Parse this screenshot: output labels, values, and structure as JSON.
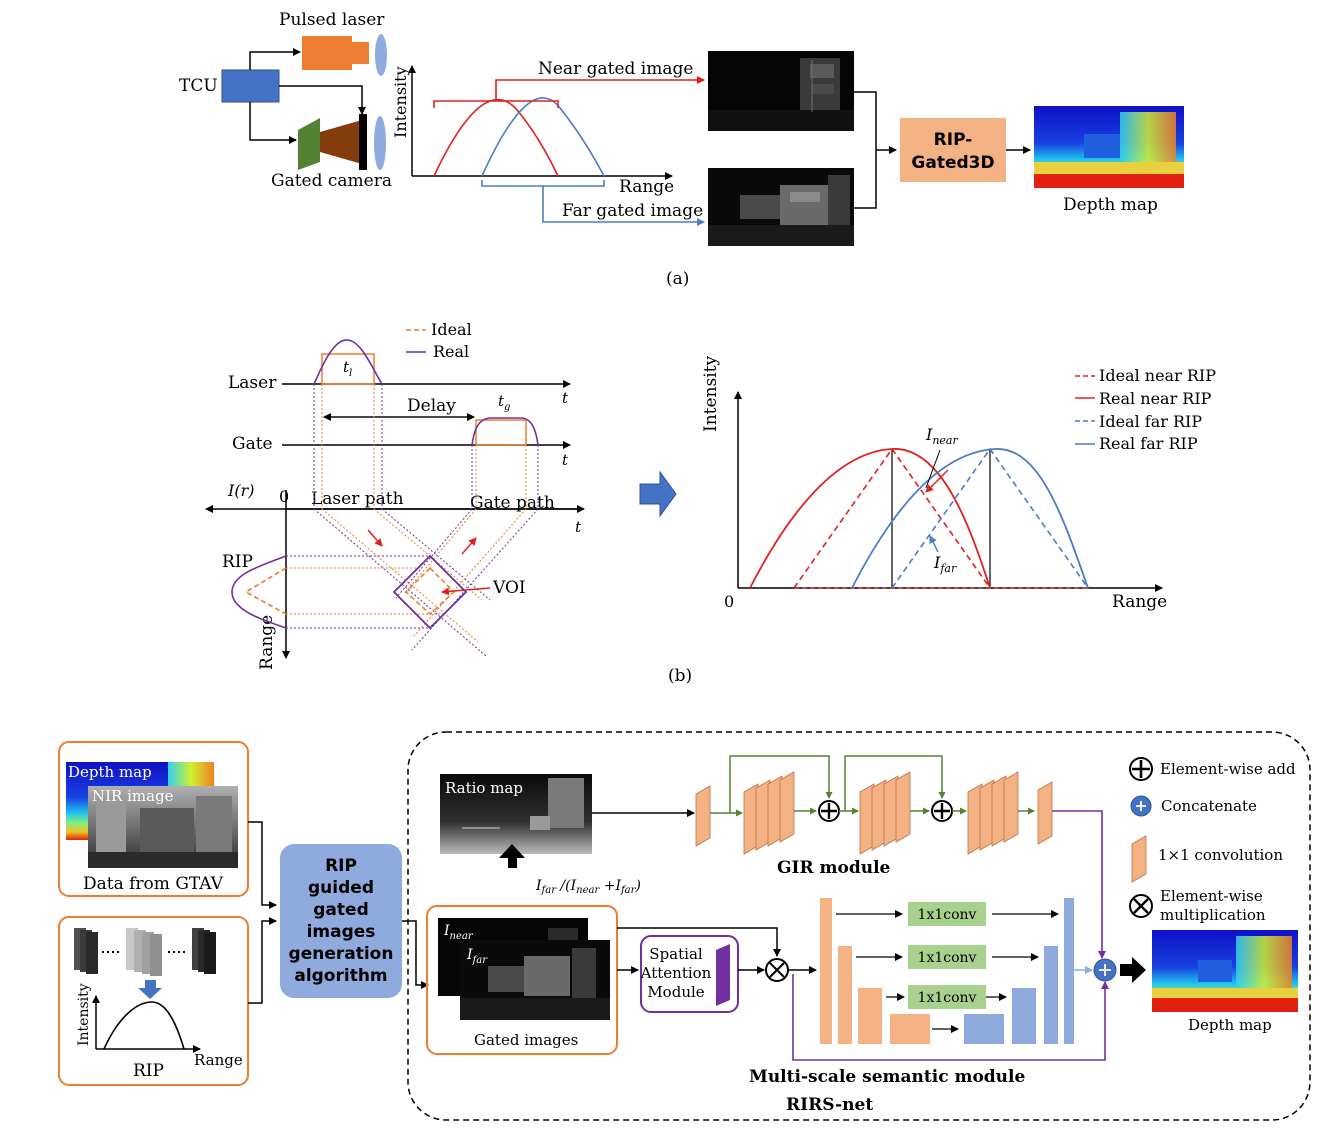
{
  "panel_a": {
    "labels": {
      "pulsed_laser": "Pulsed laser",
      "tcu": "TCU",
      "gated_camera": "Gated camera",
      "intensity": "Intensity",
      "range": "Range",
      "near_gated_image": "Near gated image",
      "far_gated_image": "Far gated image",
      "rip_gated3d_line1": "RIP-",
      "rip_gated3d_line2": "Gated3D",
      "depth_map": "Depth map"
    },
    "caption": "(a)"
  },
  "panel_b": {
    "legend_timing": {
      "ideal": "Ideal",
      "real": "Real"
    },
    "labels": {
      "laser": "Laser",
      "gate": "Gate",
      "t": "t",
      "t_l": "t",
      "t_l_sub": "l",
      "t_g": "t",
      "t_g_sub": "g",
      "delay": "Delay",
      "i_r": "I(r)",
      "zero": "0",
      "laser_path": "Laser path",
      "gate_path": "Gate path",
      "rip": "RIP",
      "voi": "VOI",
      "range": "Range",
      "intensity": "Intensity",
      "i_near": "I",
      "i_near_sub": "near",
      "i_far": "I",
      "i_far_sub": "far"
    },
    "legend_rip": {
      "ideal_near": "Ideal near RIP",
      "real_near": "Real near RIP",
      "ideal_far": "Ideal far RIP",
      "real_far": "Real far RIP"
    },
    "caption": "(b)"
  },
  "panel_c": {
    "labels": {
      "depth_map_small": "Depth map",
      "nir_image": "NIR image",
      "data_from_gtav": "Data from GTAV",
      "intensity": "Intensity",
      "range": "Range",
      "rip": "RIP",
      "rip_algo_1": "RIP",
      "rip_algo_2": "guided",
      "rip_algo_3": "gated",
      "rip_algo_4": "images",
      "rip_algo_5": "generation",
      "rip_algo_6": "algorithm",
      "ratio_map": "Ratio map",
      "ratio_formula": "I",
      "ratio_far_sub": "far",
      "ratio_mid": " /(I",
      "ratio_near_sub": "near",
      "ratio_plus": " +I",
      "ratio_far_sub2": "far",
      "ratio_close": ")",
      "i_near": "I",
      "i_near_sub": "near",
      "i_far": "I",
      "i_far_sub": "far",
      "gated_images": "Gated images",
      "spatial_1": "Spatial",
      "spatial_2": "Attention",
      "spatial_3": "Module",
      "gir_module": "GIR module",
      "conv_1x1_a": "1x1conv",
      "conv_1x1_b": "1x1conv",
      "conv_1x1_c": "1x1conv",
      "multiscale": "Multi-scale semantic module",
      "rirs_net": "RIRS-net",
      "depth_map_out": "Depth map"
    },
    "legend": {
      "element_add": "Element-wise add",
      "concatenate": "Concatenate",
      "conv": "1×1 convolution",
      "mult_1": "Element-wise",
      "mult_2": "multiplication"
    }
  },
  "colors": {
    "tcu": "#4472C4",
    "laser": "#ED7D31",
    "camera_green": "#548235",
    "camera_brown": "#843C0C",
    "near": "#E02020",
    "far": "#4A7CC8",
    "ideal": "#ED7D31",
    "real": "#7030A0",
    "rip_block": "#F4B183",
    "rip_algo": "#8FAADC",
    "conv_orange": "#F4B183",
    "conv_green": "#A9D18E",
    "blue_block": "#8FAADC",
    "purple": "#7030A0"
  }
}
